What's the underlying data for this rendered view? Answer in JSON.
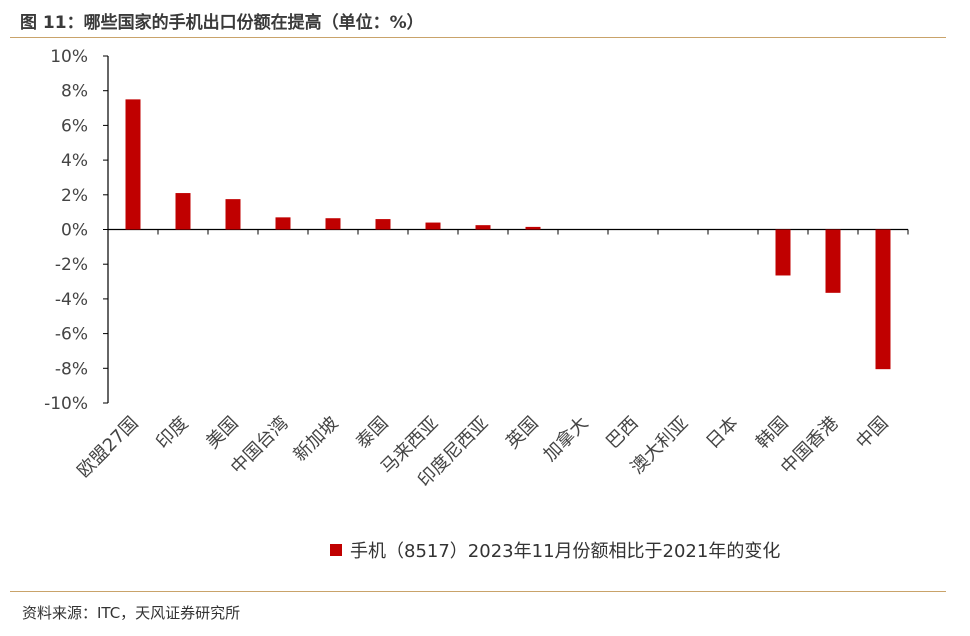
{
  "figure": {
    "title": "图 11：哪些国家的手机出口份额在提高（单位：%）",
    "source": "资料来源：ITC，天风证券研究所"
  },
  "colors": {
    "bar": "#c00000",
    "axis": "#000000",
    "rule": "#c9a36a"
  },
  "chart_data": {
    "type": "bar",
    "categories": [
      "欧盟27国",
      "印度",
      "美国",
      "中国台湾",
      "新加坡",
      "泰国",
      "马来西亚",
      "印度尼西亚",
      "英国",
      "加拿大",
      "巴西",
      "澳大利亚",
      "日本",
      "韩国",
      "中国香港",
      "中国"
    ],
    "series": [
      {
        "name": "手机（8517）2023年11月份额相比于2021年的变化",
        "values": [
          7.5,
          2.1,
          1.75,
          0.7,
          0.65,
          0.6,
          0.4,
          0.25,
          0.15,
          0.0,
          0.0,
          0.0,
          0.0,
          -2.65,
          -3.65,
          -8.05
        ]
      }
    ],
    "ylim": [
      -10,
      10
    ],
    "yticks": [
      "10%",
      "8%",
      "6%",
      "4%",
      "2%",
      "0%",
      "-2%",
      "-4%",
      "-6%",
      "-8%",
      "-10%"
    ],
    "grid": false,
    "legend_position": "bottom-center"
  }
}
